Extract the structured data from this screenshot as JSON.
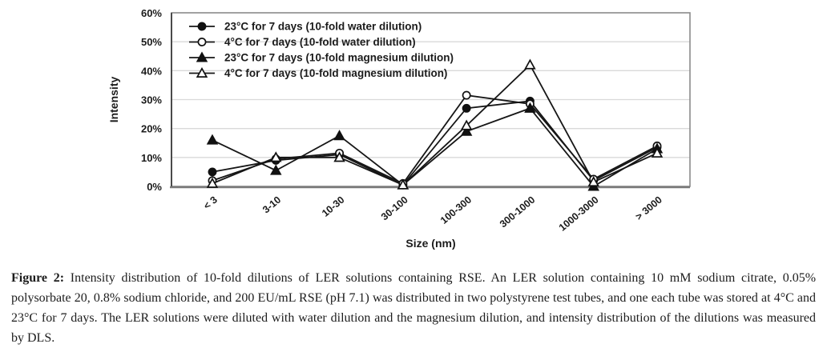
{
  "figure": {
    "caption_label": "Figure 2:",
    "caption_text": "Intensity distribution of 10-fold dilutions of LER solutions containing RSE. An LER solution containing 10 mM sodium citrate, 0.05% polysorbate 20, 0.8% sodium chloride, and 200 EU/mL RSE (pH 7.1) was distributed in two polystyrene test tubes, and one each tube was stored at 4°C and 23°C for 7 days. The LER solutions were diluted with water dilution and the magnesium dilution, and intensity distribution of the dilutions was measured by DLS."
  },
  "chart_data": {
    "type": "line",
    "title": "",
    "xlabel": "Size (nm)",
    "ylabel": "Intensity",
    "categories": [
      "< 3",
      "3-10",
      "10-30",
      "30-100",
      "100-300",
      "300-1000",
      "1000-3000",
      "> 3000"
    ],
    "y_tick_labels": [
      "0%",
      "10%",
      "20%",
      "30%",
      "40%",
      "50%",
      "60%"
    ],
    "ylim": [
      0,
      60
    ],
    "grid": true,
    "legend_position": "top-left inside plot",
    "line_color": "#161616",
    "gridline_color": "#d9d9d9",
    "series": [
      {
        "name": "23°C for 7 days (10-fold water dilution)",
        "marker": "circle-filled",
        "values": [
          5,
          9,
          11,
          0.5,
          27,
          29.5,
          2,
          13.5
        ]
      },
      {
        "name": "4°C for 7 days (10-fold water dilution)",
        "marker": "circle-open",
        "values": [
          2,
          9.5,
          11.5,
          1,
          31.5,
          28.5,
          2.5,
          14
        ]
      },
      {
        "name": "23°C for 7 days (10-fold magnesium dilution)",
        "marker": "triangle-filled",
        "values": [
          16,
          5.5,
          17.5,
          0.5,
          19,
          27,
          0,
          13
        ]
      },
      {
        "name": "4°C for 7 days (10-fold magnesium dilution)",
        "marker": "triangle-open",
        "values": [
          1,
          10,
          10,
          0.5,
          21,
          42,
          1.5,
          11.5
        ]
      }
    ]
  }
}
